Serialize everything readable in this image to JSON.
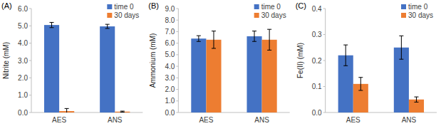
{
  "chart_data": [
    {
      "type": "bar",
      "title": "(A)",
      "y_label": "Nitrite  (mM)",
      "categories": [
        "AES",
        "ANS"
      ],
      "series": [
        {
          "name": "time 0",
          "color": "#4472c4",
          "values": [
            5.05,
            4.97
          ],
          "errors": [
            0.15,
            0.12
          ]
        },
        {
          "name": "30 days",
          "color": "#ed7d31",
          "values": [
            0.08,
            0.05
          ],
          "errors": [
            0.15,
            0.03
          ]
        }
      ],
      "ylim": [
        0,
        6
      ],
      "yticks": [
        {
          "value": 0,
          "label": "0.0"
        },
        {
          "value": 1,
          "label": "1.0"
        },
        {
          "value": 2,
          "label": "2.0"
        },
        {
          "value": 3,
          "label": "3.0"
        },
        {
          "value": 4,
          "label": "4.0"
        },
        {
          "value": 5,
          "label": "5.0"
        },
        {
          "value": 6,
          "label": "6.0"
        }
      ],
      "grid": false,
      "legend": "upper right"
    },
    {
      "type": "bar",
      "title": "(B)",
      "y_label": "Ammonium (mM)",
      "categories": [
        "AES",
        "ANS"
      ],
      "series": [
        {
          "name": "time 0",
          "color": "#4472c4",
          "values": [
            6.4,
            6.6
          ],
          "errors": [
            0.25,
            0.45
          ]
        },
        {
          "name": "30 days",
          "color": "#ed7d31",
          "values": [
            6.3,
            6.3
          ],
          "errors": [
            0.75,
            0.9
          ]
        }
      ],
      "ylim": [
        0,
        9
      ],
      "yticks": [
        {
          "value": 0,
          "label": "0.0"
        },
        {
          "value": 1,
          "label": "1.0"
        },
        {
          "value": 2,
          "label": "2.0"
        },
        {
          "value": 3,
          "label": "3.0"
        },
        {
          "value": 4,
          "label": "4.0"
        },
        {
          "value": 5,
          "label": "5.0"
        },
        {
          "value": 6,
          "label": "6.0"
        },
        {
          "value": 7,
          "label": "7.0"
        },
        {
          "value": 8,
          "label": "8.0"
        },
        {
          "value": 9,
          "label": "9.0"
        }
      ],
      "grid": false,
      "legend": "upper right"
    },
    {
      "type": "bar",
      "title": "(C)",
      "y_label": "Fe(II) (mM)",
      "categories": [
        "AES",
        "ANS"
      ],
      "series": [
        {
          "name": "time 0",
          "color": "#4472c4",
          "values": [
            0.22,
            0.25
          ],
          "errors": [
            0.04,
            0.045
          ]
        },
        {
          "name": "30 days",
          "color": "#ed7d31",
          "values": [
            0.11,
            0.05
          ],
          "errors": [
            0.025,
            0.01
          ]
        }
      ],
      "ylim": [
        0,
        0.4
      ],
      "yticks": [
        {
          "value": 0,
          "label": "0.0"
        },
        0.1,
        0.2,
        0.3,
        0.4
      ],
      "grid": false,
      "legend": "upper right"
    }
  ]
}
